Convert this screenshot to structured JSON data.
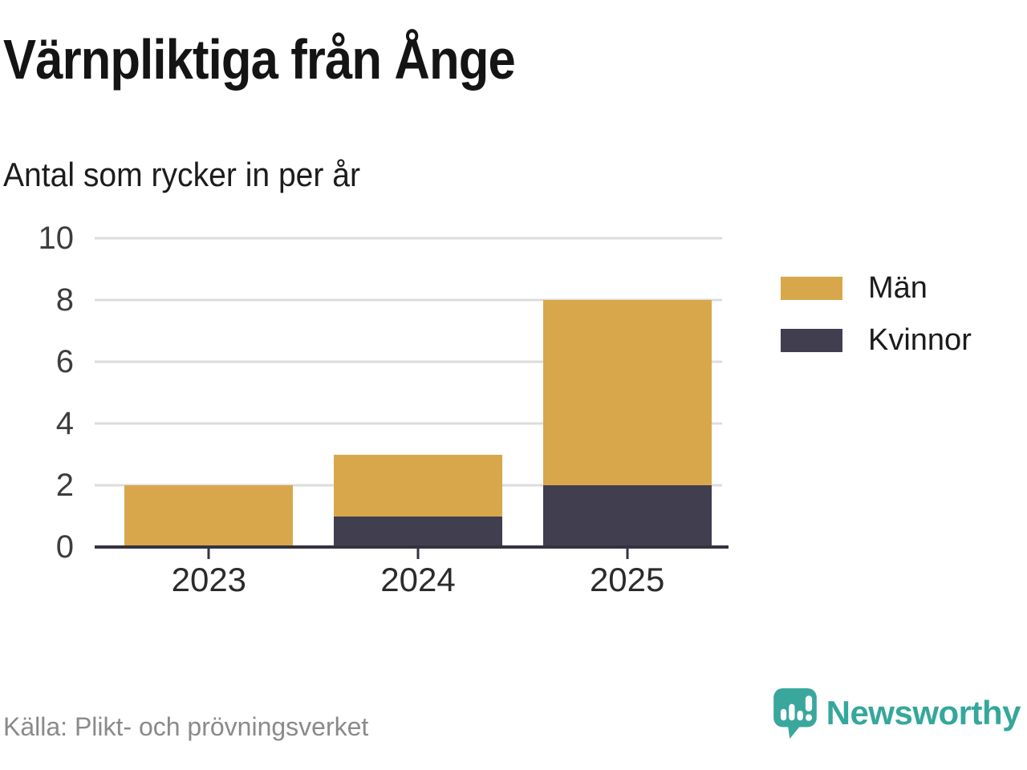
{
  "header": {
    "title": "Värnpliktiga från Ånge",
    "subtitle": "Antal som rycker in per år"
  },
  "chart_data": {
    "type": "bar",
    "stacked": true,
    "title": "Värnpliktiga från Ånge",
    "subtitle": "Antal som rycker in per år",
    "categories": [
      "2023",
      "2024",
      "2025"
    ],
    "series": [
      {
        "name": "Män",
        "color": "#d8a74c",
        "values": [
          2,
          2,
          6
        ]
      },
      {
        "name": "Kvinnor",
        "color": "#403e4f",
        "values": [
          0,
          1,
          2
        ]
      }
    ],
    "stack_totals": [
      2,
      3,
      8
    ],
    "ylim": [
      0,
      10
    ],
    "yticks": [
      0,
      2,
      4,
      6,
      8,
      10
    ],
    "xlabel": "",
    "ylabel": "",
    "grid": true,
    "legend_position": "right",
    "colors": {
      "gridline": "#dcdcdc",
      "axis": "#343340",
      "accent_gold": "#d8a74c",
      "accent_dark": "#403e4f",
      "brand_teal": "#35a79c"
    }
  },
  "footer": {
    "source": "Källa: Plikt- och prövningsverket",
    "brand": "Newsworthy"
  }
}
